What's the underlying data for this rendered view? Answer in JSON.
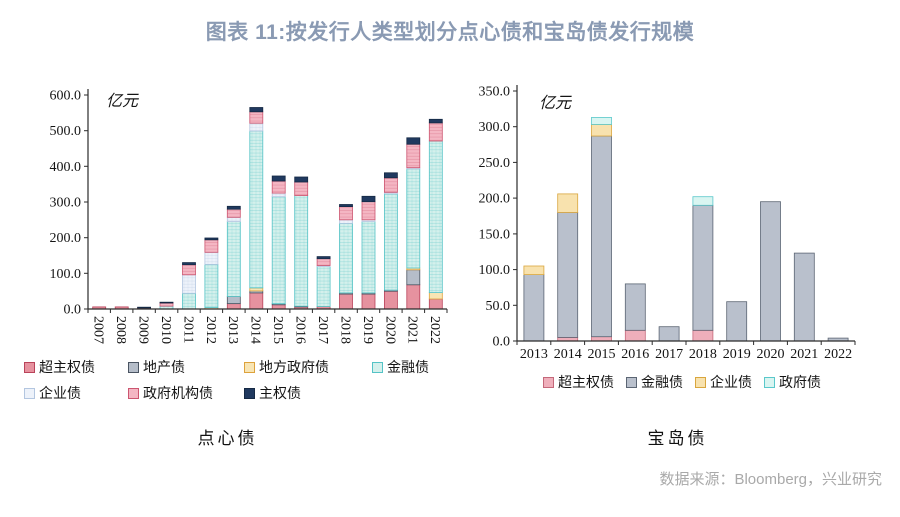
{
  "title": "图表 11:按发行人类型划分点心债和宝岛债发行规模",
  "source": "数据来源：Bloomberg，兴业研究",
  "chart_data": [
    {
      "name": "dim-sum-bonds",
      "type": "bar",
      "stacked": true,
      "caption": "点心债",
      "unit_label": "亿元",
      "legend_position": "bottom",
      "categories": [
        "2007",
        "2008",
        "2009",
        "2010",
        "2011",
        "2012",
        "2013",
        "2014",
        "2015",
        "2016",
        "2017",
        "2018",
        "2019",
        "2020",
        "2021",
        "2022"
      ],
      "ylim": [
        0,
        600
      ],
      "ytick_labels": [
        "0.0",
        "100.0",
        "200.0",
        "300.0",
        "400.0",
        "500.0",
        "600.0"
      ],
      "series": [
        {
          "name": "超主权债",
          "fill": "#e6929f",
          "stroke": "#b9435a",
          "values": [
            6,
            6,
            4,
            0,
            0,
            0,
            15,
            45,
            12,
            6,
            7,
            42,
            42,
            50,
            68,
            28
          ]
        },
        {
          "name": "地产债",
          "fill": "#b5bdc9",
          "stroke": "#4a5462",
          "values": [
            0,
            0,
            0,
            0,
            0,
            0,
            20,
            6,
            3,
            2,
            0,
            3,
            3,
            3,
            42,
            0
          ]
        },
        {
          "name": "地方政府债",
          "fill": "#f8e5b4",
          "stroke": "#dda23c",
          "values": [
            0,
            0,
            0,
            0,
            0,
            4,
            0,
            8,
            0,
            0,
            0,
            0,
            0,
            0,
            5,
            18
          ]
        },
        {
          "name": "金融债",
          "fill": "#d4f0ec",
          "stroke": "#54c3c6",
          "hatch": "grid",
          "values": [
            0,
            0,
            0,
            8,
            44,
            121,
            210,
            440,
            300,
            310,
            112,
            195,
            200,
            270,
            278,
            425
          ]
        },
        {
          "name": "企业债",
          "fill": "#edf2fa",
          "stroke": "#b3c6e0",
          "hatch": "grid",
          "values": [
            0,
            0,
            0,
            0,
            52,
            34,
            12,
            22,
            10,
            0,
            3,
            10,
            5,
            4,
            3,
            0
          ]
        },
        {
          "name": "政府机构债",
          "fill": "#f4b6c3",
          "stroke": "#cc5570",
          "hatch": "hlines",
          "values": [
            0,
            0,
            0,
            9,
            28,
            35,
            23,
            32,
            34,
            38,
            19,
            37,
            51,
            41,
            66,
            51
          ]
        },
        {
          "name": "主权债",
          "fill": "#20395f",
          "stroke": "#152944",
          "values": [
            0,
            0,
            1,
            2,
            6,
            5,
            8,
            12,
            14,
            14,
            6,
            6,
            15,
            14,
            18,
            10
          ]
        }
      ]
    },
    {
      "name": "formosa-bonds",
      "type": "bar",
      "stacked": true,
      "caption": "宝岛债",
      "unit_label": "亿元",
      "legend_position": "bottom",
      "categories": [
        "2013",
        "2014",
        "2015",
        "2016",
        "2017",
        "2018",
        "2019",
        "2020",
        "2021",
        "2022"
      ],
      "ylim": [
        0,
        350
      ],
      "ytick_labels": [
        "0.0",
        "50.0",
        "100.0",
        "150.0",
        "200.0",
        "250.0",
        "300.0",
        "350.0"
      ],
      "series": [
        {
          "name": "超主权债",
          "fill": "#efafbb",
          "stroke": "#c4687a",
          "values": [
            0,
            5,
            6,
            15,
            0,
            15,
            0,
            0,
            0,
            0
          ]
        },
        {
          "name": "金融债",
          "fill": "#b9c0cc",
          "stroke": "#5b6573",
          "values": [
            93,
            175,
            281,
            65,
            20,
            175,
            55,
            195,
            123,
            4
          ]
        },
        {
          "name": "企业债",
          "fill": "#f8e2ae",
          "stroke": "#d9a63e",
          "values": [
            12,
            26,
            16,
            0,
            0,
            0,
            0,
            0,
            0,
            0
          ]
        },
        {
          "name": "政府债",
          "fill": "#d9f5f1",
          "stroke": "#5ac8cb",
          "values": [
            0,
            0,
            10,
            0,
            0,
            12,
            0,
            0,
            0,
            0
          ]
        }
      ]
    }
  ]
}
